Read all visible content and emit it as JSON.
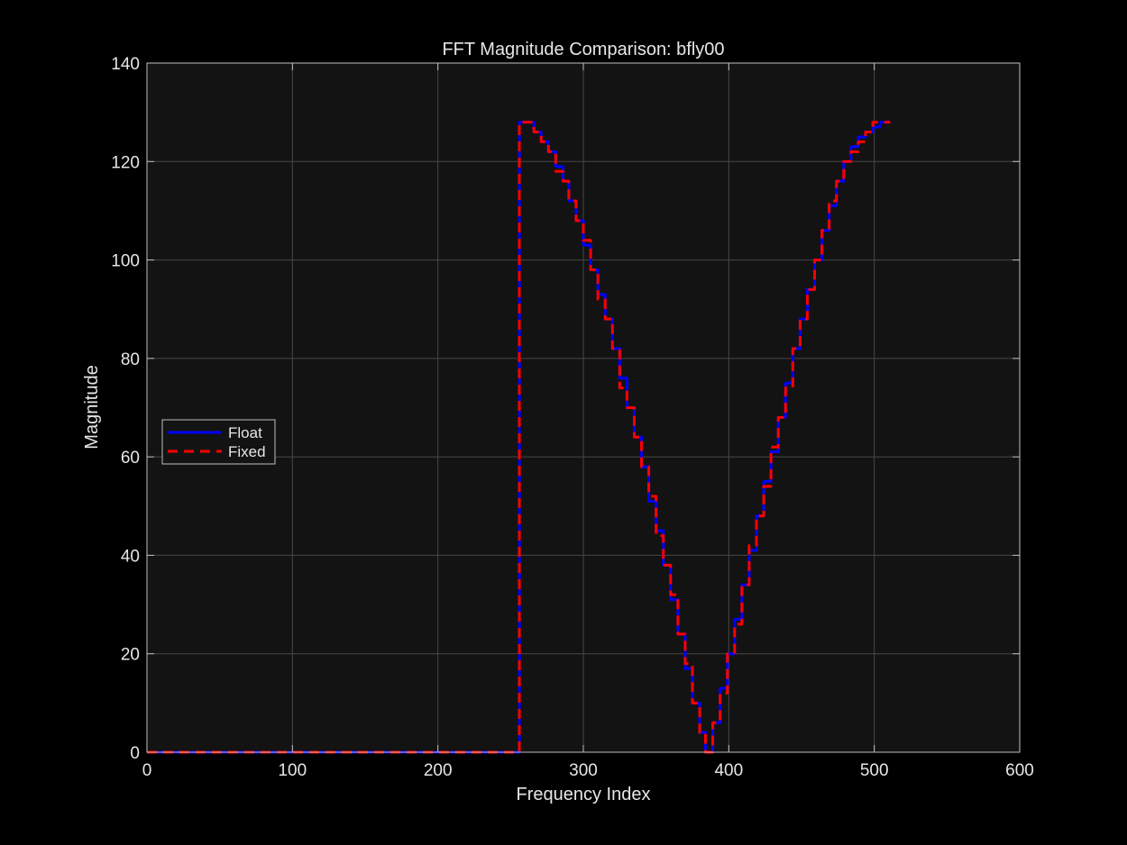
{
  "colors": {
    "figure_background": "#000000",
    "axes_background": "#131313",
    "axes_edge": "#bfbfbf",
    "grid": "#474747",
    "text": "#e6e6e6",
    "legend_background": "#131313",
    "legend_edge": "#bfbfbf"
  },
  "chart_data": {
    "type": "line",
    "title": "FFT Magnitude Comparison: bfly00",
    "xlabel": "Frequency Index",
    "ylabel": "Magnitude",
    "xlim": [
      0,
      600
    ],
    "ylim": [
      0,
      140
    ],
    "xticks": [
      0,
      100,
      200,
      300,
      400,
      500,
      600
    ],
    "yticks": [
      0,
      20,
      40,
      60,
      80,
      100,
      120,
      140
    ],
    "grid": true,
    "legend_position": "middle-left",
    "series": [
      {
        "name": "Float",
        "color": "#0000ff",
        "line_style": "solid",
        "x": [
          0,
          255,
          256,
          256,
          266,
          266,
          271,
          271,
          276,
          276,
          281,
          281,
          286,
          286,
          290,
          290,
          295,
          295,
          300,
          300,
          305,
          305,
          310,
          310,
          315,
          315,
          320,
          320,
          325,
          325,
          330,
          330,
          335,
          335,
          340,
          340,
          345,
          345,
          350,
          350,
          355,
          355,
          360,
          360,
          365,
          365,
          370,
          370,
          375,
          375,
          380,
          380,
          384,
          384,
          389,
          389,
          394,
          394,
          399,
          399,
          404,
          404,
          409,
          409,
          414,
          414,
          419,
          419,
          424,
          424,
          429,
          429,
          434,
          434,
          439,
          439,
          444,
          444,
          449,
          449,
          454,
          454,
          459,
          459,
          464,
          464,
          469,
          469,
          474,
          474,
          479,
          479,
          484,
          484,
          489,
          489,
          494,
          494,
          499,
          499,
          504,
          504,
          511
        ],
        "y": [
          0,
          0,
          0,
          128,
          128,
          126,
          126,
          124,
          124,
          122,
          122,
          119,
          119,
          116,
          116,
          112,
          112,
          108,
          108,
          103,
          103,
          98,
          98,
          93,
          93,
          88,
          88,
          82,
          82,
          76,
          76,
          70,
          70,
          64,
          64,
          58,
          58,
          51,
          51,
          45,
          45,
          38,
          38,
          31,
          31,
          24,
          24,
          17,
          17,
          10,
          10,
          4,
          4,
          0,
          0,
          6,
          6,
          13,
          13,
          20,
          20,
          27,
          27,
          34,
          34,
          41,
          41,
          48,
          48,
          55,
          55,
          61,
          61,
          68,
          68,
          75,
          75,
          82,
          82,
          88,
          88,
          94,
          94,
          100,
          100,
          106,
          106,
          111,
          111,
          116,
          116,
          120,
          120,
          123,
          123,
          125,
          125,
          126,
          126,
          127,
          127,
          128,
          128
        ]
      },
      {
        "name": "Fixed",
        "color": "#ff0000",
        "line_style": "dashed",
        "x": [
          0,
          255,
          256,
          256,
          266,
          266,
          271,
          271,
          276,
          276,
          281,
          281,
          286,
          286,
          290,
          290,
          295,
          295,
          300,
          300,
          305,
          305,
          310,
          310,
          315,
          315,
          320,
          320,
          325,
          325,
          330,
          330,
          335,
          335,
          340,
          340,
          345,
          345,
          350,
          350,
          355,
          355,
          360,
          360,
          365,
          365,
          370,
          370,
          375,
          375,
          380,
          380,
          384,
          384,
          389,
          389,
          394,
          394,
          399,
          399,
          404,
          404,
          409,
          409,
          414,
          414,
          419,
          419,
          424,
          424,
          429,
          429,
          434,
          434,
          439,
          439,
          444,
          444,
          449,
          449,
          454,
          454,
          459,
          459,
          464,
          464,
          469,
          469,
          474,
          474,
          479,
          479,
          484,
          484,
          489,
          489,
          494,
          494,
          499,
          499,
          504,
          504,
          511
        ],
        "y": [
          0,
          0,
          0,
          128,
          128,
          126,
          126,
          124,
          124,
          122,
          122,
          118,
          118,
          116,
          116,
          112,
          112,
          108,
          108,
          104,
          104,
          98,
          98,
          92,
          92,
          88,
          88,
          82,
          82,
          74,
          74,
          70,
          70,
          64,
          64,
          58,
          58,
          52,
          52,
          44,
          44,
          38,
          38,
          32,
          32,
          24,
          24,
          18,
          18,
          10,
          10,
          4,
          4,
          0,
          0,
          6,
          6,
          12,
          12,
          20,
          20,
          26,
          26,
          34,
          34,
          42,
          42,
          48,
          48,
          54,
          54,
          62,
          62,
          68,
          68,
          74,
          74,
          82,
          82,
          88,
          88,
          94,
          94,
          100,
          100,
          106,
          106,
          112,
          112,
          116,
          116,
          120,
          120,
          122,
          122,
          124,
          124,
          126,
          126,
          128,
          128,
          128,
          128
        ]
      }
    ]
  }
}
